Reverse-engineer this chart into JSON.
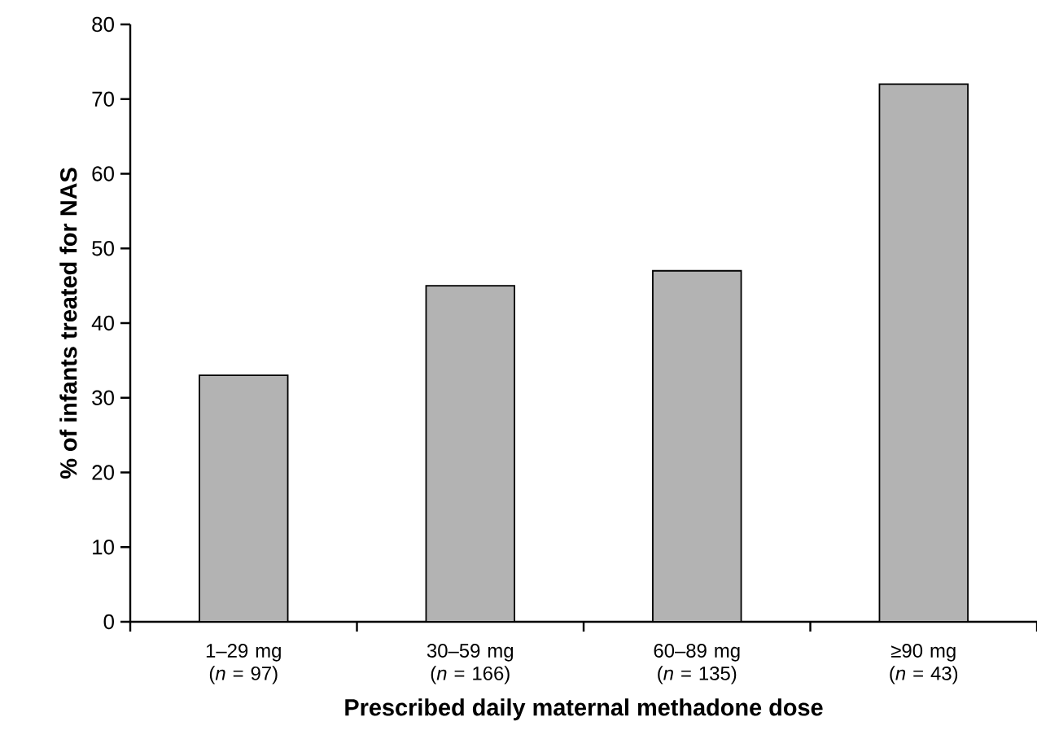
{
  "chart_data": {
    "type": "bar",
    "categories": [
      "1–29 mg (*n* = 97)",
      "30–59 mg (*n* = 166)",
      "60–89 mg (*n* = 135)",
      "≥90 mg (*n* = 43)"
    ],
    "values": [
      33,
      45,
      47,
      72
    ],
    "color": "#b3b3b3",
    "xlabel": "Prescribed daily maternal methadone dose",
    "ylabel": "% of infants treated for NAS",
    "ylim": [
      0,
      80
    ],
    "yticks": [
      0,
      10,
      20,
      30,
      40,
      50,
      60,
      70,
      80
    ]
  }
}
